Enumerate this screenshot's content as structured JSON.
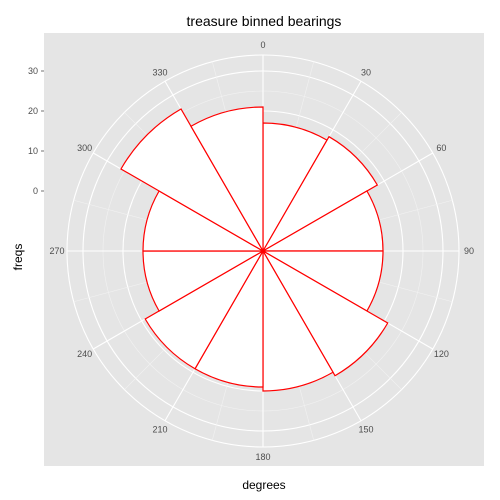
{
  "chart_data": {
    "type": "bar",
    "coord": "polar",
    "title": "treasure binned bearings",
    "xlabel": "degrees",
    "ylabel": "freqs",
    "bin_width_deg": 30,
    "categories": [
      0,
      30,
      60,
      90,
      120,
      150,
      180,
      210,
      240,
      270,
      300,
      330
    ],
    "values": [
      17,
      18,
      15,
      15,
      21,
      20,
      19,
      19,
      15,
      15,
      26,
      21
    ],
    "angle_ticks": [
      "0",
      "30",
      "60",
      "90",
      "120",
      "150",
      "180",
      "210",
      "240",
      "270",
      "300",
      "330"
    ],
    "radius_ticks": [
      0,
      10,
      20,
      30
    ],
    "radius_tick_labels": [
      "0",
      "10",
      "20",
      "30"
    ],
    "ylim": [
      -15,
      34
    ],
    "grid": true,
    "colors": {
      "panel": "#e5e5e5",
      "grid": "#ffffff",
      "bar_fill": "#ffffff",
      "bar_stroke": "#ff0000"
    }
  }
}
